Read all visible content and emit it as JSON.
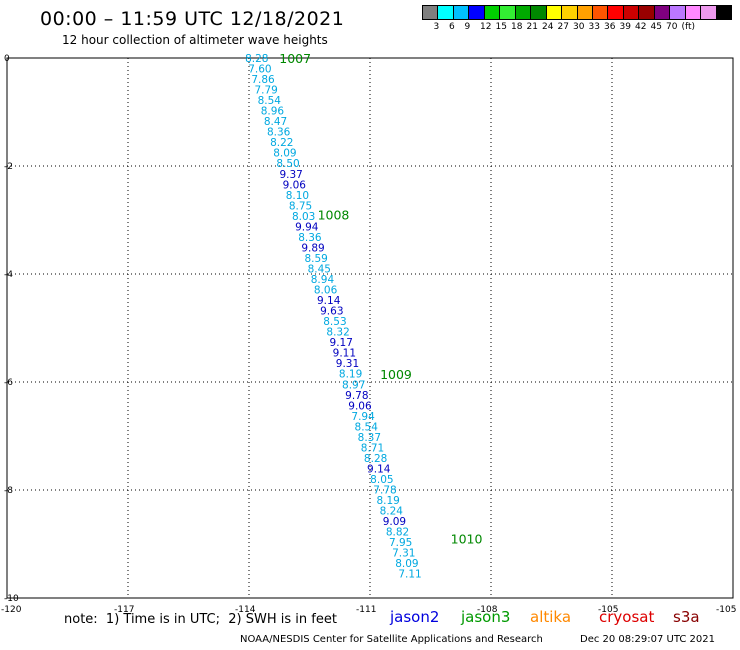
{
  "title": "00:00 – 11:59 UTC 12/18/2021",
  "subtitle": "12 hour collection of altimeter wave heights",
  "colorbar": {
    "colors": [
      "#7f7f7f",
      "#00ffff",
      "#00bfff",
      "#0000ff",
      "#00d000",
      "#33ee33",
      "#00aa00",
      "#008800",
      "#ffff00",
      "#ffd000",
      "#ffa000",
      "#ff5500",
      "#ff0000",
      "#cc0000",
      "#990000",
      "#7f007f",
      "#bb77ff",
      "#ff88ff",
      "#ee99ee",
      "#000000"
    ],
    "labels": [
      "3",
      "6",
      "9",
      "12",
      "15",
      "18",
      "21",
      "24",
      "27",
      "30",
      "33",
      "36",
      "39",
      "42",
      "45",
      "70",
      "(ft)"
    ]
  },
  "chart_data": {
    "type": "scatter",
    "xlim": [
      -120,
      -102
    ],
    "ylim": [
      -10,
      0
    ],
    "x_ticks": [
      "-120",
      "-117",
      "-114",
      "-111",
      "-108",
      "-105"
    ],
    "y_ticks": [
      "0",
      "-2",
      "-4",
      "-6",
      "-8",
      "-10"
    ],
    "grid": true,
    "track": {
      "lon_start": -113.8,
      "lat_start": 0.0,
      "lon_end": -110.0,
      "lat_end": -9.55,
      "values": [
        "8.28",
        "7.60",
        "7.86",
        "7.79",
        "8.54",
        "8.96",
        "8.47",
        "8.36",
        "8.22",
        "8.09",
        "8.50",
        "9.37",
        "9.06",
        "8.10",
        "8.75",
        "8.03",
        "9.94",
        "8.36",
        "9.89",
        "8.59",
        "8.45",
        "8.94",
        "8.06",
        "9.14",
        "9.63",
        "8.53",
        "8.32",
        "9.17",
        "9.11",
        "9.31",
        "8.19",
        "8.97",
        "9.78",
        "9.06",
        "7.94",
        "8.54",
        "8.37",
        "8.71",
        "8.28",
        "9.14",
        "8.05",
        "7.78",
        "8.19",
        "8.24",
        "9.09",
        "8.82",
        "7.95",
        "7.31",
        "8.09",
        "7.11"
      ],
      "colors": [
        "#00a8e0",
        "#00a8e0",
        "#00a8e0",
        "#00a8e0",
        "#00a8e0",
        "#00a8e0",
        "#00a8e0",
        "#00a8e0",
        "#00a8e0",
        "#00a8e0",
        "#00a8e0",
        "#0000c0",
        "#0000c0",
        "#00a8e0",
        "#00a8e0",
        "#00a8e0",
        "#0000c0",
        "#00a8e0",
        "#0000c0",
        "#00a8e0",
        "#00a8e0",
        "#00a8e0",
        "#00a8e0",
        "#0000c0",
        "#0000c0",
        "#00a8e0",
        "#00a8e0",
        "#0000c0",
        "#0000c0",
        "#0000c0",
        "#00a8e0",
        "#00a8e0",
        "#0000c0",
        "#0000c0",
        "#00a8e0",
        "#00a8e0",
        "#00a8e0",
        "#00a8e0",
        "#00a8e0",
        "#0000c0",
        "#00a8e0",
        "#00a8e0",
        "#00a8e0",
        "#00a8e0",
        "#0000c0",
        "#00a8e0",
        "#00a8e0",
        "#00a8e0",
        "#00a8e0",
        "#00a8e0"
      ]
    },
    "time_labels": [
      {
        "text": "1007",
        "lon": -113.25,
        "lat": 0.0
      },
      {
        "text": "1008",
        "lon": -112.3,
        "lat": -2.9
      },
      {
        "text": "1009",
        "lon": -110.75,
        "lat": -5.85
      },
      {
        "text": "1010",
        "lon": -109.0,
        "lat": -8.9
      }
    ],
    "time_label_color": "#008800"
  },
  "note": "note:  1) Time is in UTC;  2) SWH is in feet",
  "satellites": [
    {
      "name": "jason2",
      "color": "#0000dd"
    },
    {
      "name": "jason3",
      "color": "#009900"
    },
    {
      "name": "altika",
      "color": "#ff8800"
    },
    {
      "name": "cryosat",
      "color": "#dd0000"
    },
    {
      "name": "s3a",
      "color": "#880000"
    }
  ],
  "footer": "NOAA/NESDIS Center for Satellite Applications and Research",
  "timestamp": "Dec 20 08:29:07 UTC 2021"
}
